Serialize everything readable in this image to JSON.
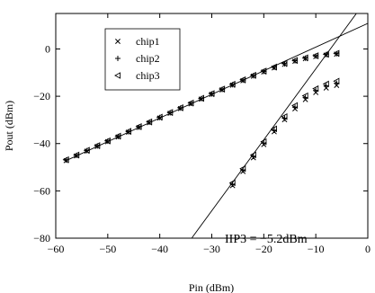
{
  "chart_data": {
    "type": "scatter",
    "xlabel": "Pin (dBm)",
    "ylabel": "Pout (dBm)",
    "xlim": [
      -60,
      0
    ],
    "ylim": [
      -80,
      15
    ],
    "x_ticks": [
      -60,
      -50,
      -40,
      -30,
      -20,
      -10,
      0
    ],
    "y_ticks": [
      -80,
      -60,
      -40,
      -20,
      0
    ],
    "x_tick_labels": [
      "−60",
      "−50",
      "−40",
      "−30",
      "−20",
      "−10",
      "0"
    ],
    "y_tick_labels": [
      "−80",
      "−60",
      "−40",
      "−20",
      "0"
    ],
    "grid": false,
    "legend_position": "top-left",
    "annotation": "IIP3 = −5.2dBm",
    "fundamental_x": [
      -58,
      -56,
      -54,
      -52,
      -50,
      -48,
      -46,
      -44,
      -42,
      -40,
      -38,
      -36,
      -34,
      -32,
      -30,
      -28,
      -26,
      -24,
      -22,
      -20,
      -18,
      -16,
      -14,
      -12,
      -10,
      -8,
      -6
    ],
    "im3_x": [
      -26,
      -24,
      -22,
      -20,
      -18,
      -16,
      -14,
      -12,
      -10,
      -8,
      -6
    ],
    "series": [
      {
        "name": "chip1",
        "marker": "x",
        "fundamental_y": [
          -47.2,
          -45.2,
          -43.2,
          -41.2,
          -39.2,
          -37.2,
          -35.2,
          -33.2,
          -31.2,
          -29.2,
          -27.2,
          -25.2,
          -23.2,
          -21.2,
          -19.2,
          -17.3,
          -15.3,
          -13.4,
          -11.5,
          -9.7,
          -8.0,
          -6.5,
          -5.2,
          -4.1,
          -3.2,
          -2.6,
          -2.2
        ],
        "im3_y": [
          -57.8,
          -51.8,
          -46.0,
          -40.4,
          -35.0,
          -29.9,
          -25.3,
          -21.4,
          -18.4,
          -16.5,
          -15.4
        ]
      },
      {
        "name": "chip2",
        "marker": "+",
        "fundamental_y": [
          -47.0,
          -45.0,
          -43.0,
          -41.0,
          -39.0,
          -37.0,
          -35.0,
          -33.0,
          -31.0,
          -29.0,
          -27.0,
          -25.0,
          -23.0,
          -21.0,
          -19.0,
          -17.1,
          -15.1,
          -13.2,
          -11.3,
          -9.5,
          -7.8,
          -6.3,
          -5.0,
          -3.9,
          -3.0,
          -2.4,
          -2.0
        ],
        "im3_y": [
          -57.2,
          -51.2,
          -45.4,
          -39.8,
          -34.4,
          -29.3,
          -24.6,
          -20.6,
          -17.6,
          -15.6,
          -14.5
        ]
      },
      {
        "name": "chip3",
        "marker": "triangle-left",
        "fundamental_y": [
          -46.8,
          -44.8,
          -42.8,
          -40.8,
          -38.8,
          -36.8,
          -34.8,
          -32.8,
          -30.8,
          -28.8,
          -26.8,
          -24.8,
          -22.8,
          -20.8,
          -18.8,
          -16.9,
          -14.9,
          -13.0,
          -11.1,
          -9.3,
          -7.6,
          -6.1,
          -4.8,
          -3.7,
          -2.8,
          -2.2,
          -1.8
        ],
        "im3_y": [
          -56.6,
          -50.6,
          -44.8,
          -39.2,
          -33.8,
          -28.6,
          -23.9,
          -19.8,
          -16.8,
          -14.8,
          -13.6
        ]
      }
    ],
    "fit_lines": [
      {
        "slope": 1,
        "intercept": 10.8,
        "x_range": [
          -58,
          0
        ]
      },
      {
        "slope": 3,
        "intercept": 21.6,
        "x_range": [
          -33.8,
          -1
        ]
      }
    ]
  }
}
